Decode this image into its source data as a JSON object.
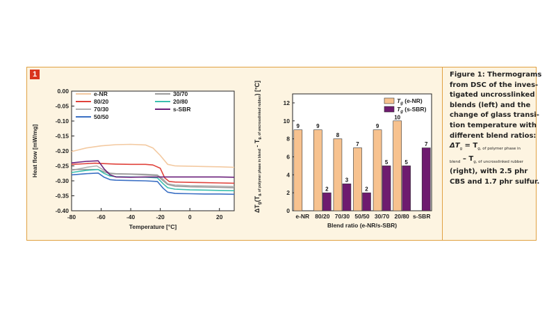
{
  "figure": {
    "badge": "1",
    "caption": {
      "lines": [
        "Figure 1: Thermograms",
        "from DSC of the inves-",
        "tigated uncrosslinked",
        "blends (left) and the",
        "change of glass transi-",
        "tion temperature with",
        "different blend ratios:"
      ],
      "formula_symbol": "ΔT",
      "formula_sub_g": "g",
      "formula_eq": " = T",
      "formula_sub1": "g, of polymer phase in",
      "formula_sub2": "blend",
      "formula_minus": " – T",
      "formula_sub3": "g, of uncrosslinked rubber",
      "tail_lines": [
        "(right), with 2.5 phr",
        "CBS and 1.7 phr sulfur."
      ]
    }
  },
  "chart_data": [
    {
      "type": "line",
      "title": "",
      "xlabel": "Temperature [°C]",
      "ylabel": "Heat flow [mW/mg]",
      "xlim": [
        -80,
        30
      ],
      "ylim": [
        -0.4,
        0.0
      ],
      "xticks": [
        -80,
        -60,
        -40,
        -20,
        0,
        20
      ],
      "xtick_labels": [
        "-80",
        "-60",
        "-40",
        "-20",
        "0",
        "20"
      ],
      "yticks": [
        0.0,
        -0.05,
        -0.1,
        -0.15,
        -0.2,
        -0.25,
        -0.3,
        -0.35,
        -0.4
      ],
      "ytick_labels": [
        "0.00",
        "-0.05",
        "-0.10",
        "-0.15",
        "-0.20",
        "-0.25",
        "-0.30",
        "-0.35",
        "-0.40"
      ],
      "legend_position": "top-center",
      "series": [
        {
          "name": "e-NR",
          "color": "#f3c9a0",
          "x": [
            -80,
            -70,
            -60,
            -50,
            -40,
            -30,
            -25,
            -20,
            -15,
            -10,
            0,
            10,
            20,
            30
          ],
          "y": [
            -0.202,
            -0.19,
            -0.183,
            -0.179,
            -0.178,
            -0.18,
            -0.19,
            -0.215,
            -0.245,
            -0.25,
            -0.251,
            -0.252,
            -0.253,
            -0.255
          ]
        },
        {
          "name": "80/20",
          "color": "#e0413a",
          "x": [
            -80,
            -72,
            -64,
            -60,
            -50,
            -40,
            -30,
            -25,
            -20,
            -17,
            -14,
            -10,
            0,
            10,
            20,
            30
          ],
          "y": [
            -0.245,
            -0.243,
            -0.241,
            -0.242,
            -0.244,
            -0.245,
            -0.245,
            -0.247,
            -0.258,
            -0.29,
            -0.302,
            -0.304,
            -0.305,
            -0.306,
            -0.307,
            -0.308
          ]
        },
        {
          "name": "70/30",
          "color": "#b0b0b0",
          "x": [
            -80,
            -70,
            -63,
            -58,
            -54,
            -50,
            -40,
            -30,
            -22,
            -18,
            -15,
            -10,
            0,
            10,
            20,
            30
          ],
          "y": [
            -0.265,
            -0.255,
            -0.25,
            -0.265,
            -0.274,
            -0.276,
            -0.277,
            -0.278,
            -0.28,
            -0.295,
            -0.31,
            -0.314,
            -0.316,
            -0.317,
            -0.318,
            -0.319
          ]
        },
        {
          "name": "50/50",
          "color": "#3a6fc4",
          "x": [
            -80,
            -70,
            -62,
            -58,
            -54,
            -50,
            -40,
            -30,
            -22,
            -18,
            -15,
            -10,
            0,
            10,
            20,
            30
          ],
          "y": [
            -0.28,
            -0.276,
            -0.274,
            -0.288,
            -0.296,
            -0.298,
            -0.299,
            -0.3,
            -0.302,
            -0.325,
            -0.338,
            -0.342,
            -0.343,
            -0.344,
            -0.344,
            -0.345
          ]
        },
        {
          "name": "30/70",
          "color": "#9a9a9a",
          "x": [
            -80,
            -70,
            -62,
            -58,
            -54,
            -50,
            -40,
            -30,
            -22,
            -18,
            -15,
            -10,
            0,
            10,
            20,
            30
          ],
          "y": [
            -0.262,
            -0.262,
            -0.262,
            -0.27,
            -0.276,
            -0.277,
            -0.278,
            -0.28,
            -0.282,
            -0.3,
            -0.312,
            -0.318,
            -0.32,
            -0.321,
            -0.322,
            -0.323
          ]
        },
        {
          "name": "20/80",
          "color": "#3bbfae",
          "x": [
            -80,
            -70,
            -62,
            -58,
            -54,
            -50,
            -40,
            -30,
            -22,
            -18,
            -15,
            -10,
            0,
            10,
            20,
            30
          ],
          "y": [
            -0.272,
            -0.265,
            -0.262,
            -0.275,
            -0.284,
            -0.286,
            -0.287,
            -0.288,
            -0.29,
            -0.31,
            -0.323,
            -0.328,
            -0.33,
            -0.331,
            -0.332,
            -0.333
          ]
        },
        {
          "name": "s-SBR",
          "color": "#6a1f7a",
          "x": [
            -80,
            -70,
            -62,
            -58,
            -54,
            -50,
            -40,
            -30,
            -20,
            -10,
            0,
            10,
            20,
            30
          ],
          "y": [
            -0.24,
            -0.235,
            -0.233,
            -0.26,
            -0.28,
            -0.287,
            -0.288,
            -0.287,
            -0.287,
            -0.287,
            -0.287,
            -0.287,
            -0.287,
            -0.288
          ]
        }
      ]
    },
    {
      "type": "bar",
      "title": "",
      "xlabel": "Blend ratio (e-NR/s-SBR)",
      "ylabel_main": "ΔT",
      "ylabel_sub_g": "g",
      "ylabel_mid": "(T",
      "ylabel_sub1": "g, of polymer phase in blend",
      "ylabel_minus": " - T",
      "ylabel_sub2": "g, of uncrosslinked rubber",
      "ylabel_end": ") [°C]",
      "categories": [
        "e-NR",
        "80/20",
        "70/30",
        "50/50",
        "30/70",
        "20/80",
        "s-SBR"
      ],
      "ylim": [
        0,
        13
      ],
      "yticks": [
        0,
        2,
        4,
        6,
        8,
        10,
        12
      ],
      "ytick_labels": [
        "0",
        "2",
        "4",
        "6",
        "8",
        "10",
        "12"
      ],
      "legend_position": "top-right",
      "series": [
        {
          "name": "T",
          "name_sub": "g",
          "name_suffix": " (e-NR)",
          "color": "#f7c28f",
          "values": [
            9,
            9,
            8,
            7,
            9,
            10,
            null
          ],
          "labels": [
            "9",
            "9",
            "8",
            "7",
            "9",
            "10",
            ""
          ]
        },
        {
          "name": "T",
          "name_sub": "g",
          "name_suffix": " (s-SBR)",
          "color": "#6e1b6f",
          "values": [
            null,
            2,
            3,
            2,
            5,
            5,
            7
          ],
          "labels": [
            "",
            "2",
            "3",
            "2",
            "5",
            "5",
            "7"
          ]
        }
      ]
    }
  ]
}
